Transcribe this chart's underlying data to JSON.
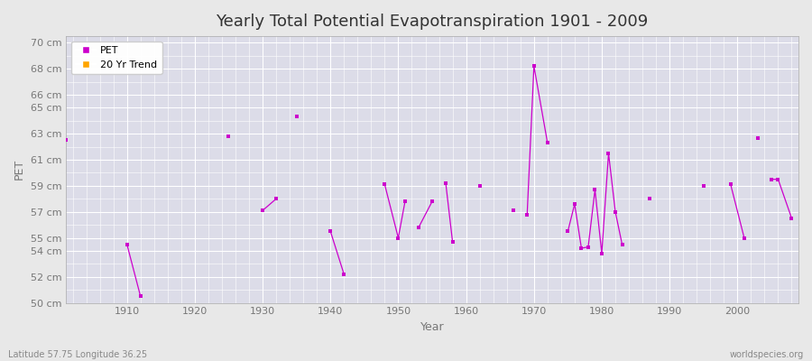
{
  "title": "Yearly Total Potential Evapotranspiration 1901 - 2009",
  "xlabel": "Year",
  "ylabel": "PET",
  "subtitle_left": "Latitude 57.75 Longitude 36.25",
  "subtitle_right": "worldspecies.org",
  "ylim": [
    50,
    70.5
  ],
  "xlim": [
    1901,
    2009
  ],
  "yticks": [
    50,
    52,
    54,
    55,
    57,
    59,
    61,
    63,
    65,
    66,
    68,
    70
  ],
  "ytick_labels": [
    "50 cm",
    "52 cm",
    "54 cm",
    "55 cm",
    "57 cm",
    "59 cm",
    "61 cm",
    "63 cm",
    "65 cm",
    "66 cm",
    "68 cm",
    "70 cm"
  ],
  "pet_color": "#cc00cc",
  "trend_color": "#FFA500",
  "bg_color": "#e8e8e8",
  "plot_bg_color": "#dcdce8",
  "grid_color": "#ffffff",
  "pet_segments": [
    [
      [
        1901
      ],
      [
        62.5
      ]
    ],
    [
      [
        1910,
        1912
      ],
      [
        54.5,
        50.5
      ]
    ],
    [
      [
        1925
      ],
      [
        62.8
      ]
    ],
    [
      [
        1930,
        1932
      ],
      [
        57.1,
        58.0
      ]
    ],
    [
      [
        1935
      ],
      [
        64.3
      ]
    ],
    [
      [
        1940,
        1942
      ],
      [
        55.5,
        52.2
      ]
    ],
    [
      [
        1948,
        1950,
        1951
      ],
      [
        59.1,
        55.0,
        57.8
      ]
    ],
    [
      [
        1953,
        1955
      ],
      [
        55.8,
        57.8
      ]
    ],
    [
      [
        1957,
        1958
      ],
      [
        59.2,
        54.7
      ]
    ],
    [
      [
        1962
      ],
      [
        59.0
      ]
    ],
    [
      [
        1967
      ],
      [
        57.1
      ]
    ],
    [
      [
        1969,
        1970,
        1972
      ],
      [
        56.8,
        68.2,
        62.3
      ]
    ],
    [
      [
        1975,
        1976,
        1977,
        1978,
        1979,
        1980,
        1981,
        1982,
        1983
      ],
      [
        55.5,
        57.6,
        54.2,
        54.3,
        58.7,
        53.8,
        61.5,
        57.0,
        54.5
      ]
    ],
    [
      [
        1987
      ],
      [
        58.0
      ]
    ],
    [
      [
        1995
      ],
      [
        59.0
      ]
    ],
    [
      [
        1999,
        2001
      ],
      [
        59.1,
        55.0
      ]
    ],
    [
      [
        2003
      ],
      [
        62.7
      ]
    ],
    [
      [
        2005,
        2006,
        2008
      ],
      [
        59.5,
        59.5,
        56.5
      ]
    ]
  ],
  "legend_pet_label": "PET",
  "legend_trend_label": "20 Yr Trend",
  "title_fontsize": 13,
  "axis_fontsize": 9,
  "tick_fontsize": 8,
  "tick_color": "#777777"
}
